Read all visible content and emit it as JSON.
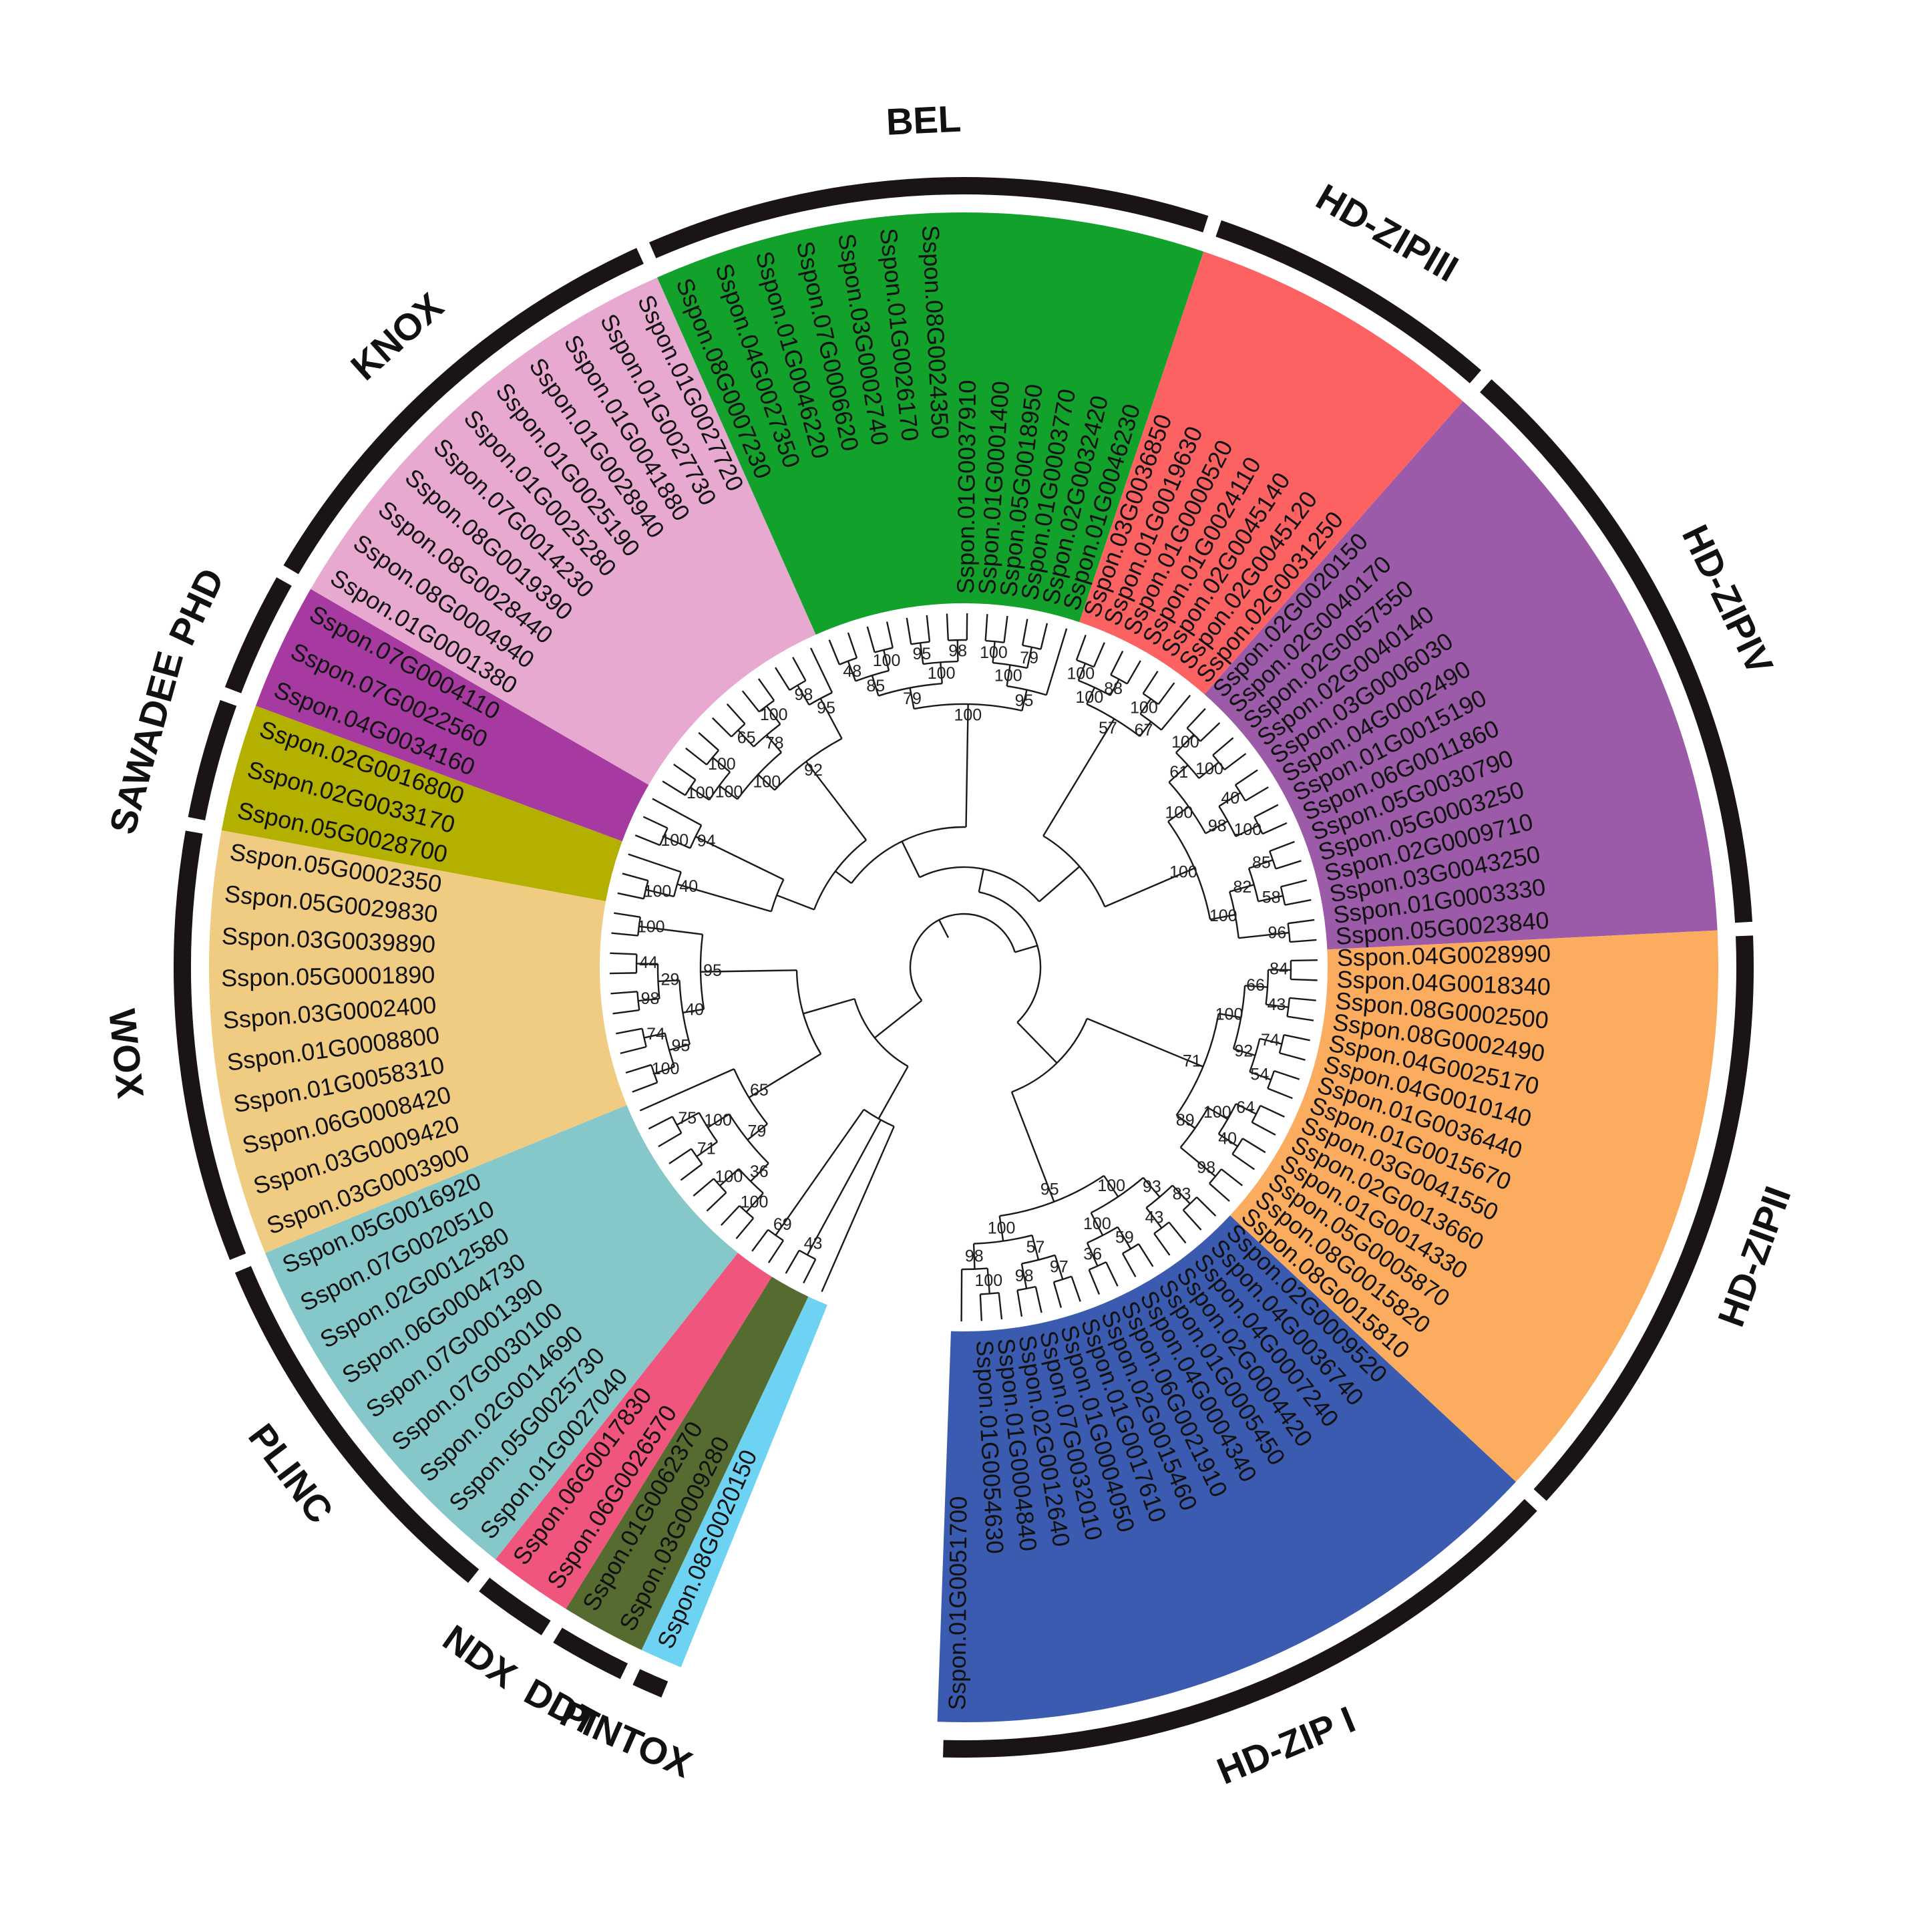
{
  "clades": [
    {
      "name": "PINTOX",
      "color": "#6ed3f2",
      "leaves": [
        "Sspon.08G0020150"
      ]
    },
    {
      "name": "DDT",
      "color": "#556b2f",
      "leaves": [
        "Sspon.03G0009280",
        "Sspon.01G0062370"
      ]
    },
    {
      "name": "NDX",
      "color": "#f0557d",
      "leaves": [
        "Sspon.06G0026570",
        "Sspon.06G0017830"
      ]
    },
    {
      "name": "PLINC",
      "color": "#86c7c9",
      "leaves": [
        "Sspon.01G0027040",
        "Sspon.05G0025730",
        "Sspon.02G0014690",
        "Sspon.07G0030100",
        "Sspon.07G0001390",
        "Sspon.06G0004730",
        "Sspon.02G0012580",
        "Sspon.07G0020510",
        "Sspon.05G0016920"
      ]
    },
    {
      "name": "WOX",
      "color": "#f0cc83",
      "leaves": [
        "Sspon.03G0003900",
        "Sspon.03G0009420",
        "Sspon.06G0008420",
        "Sspon.01G0058310",
        "Sspon.01G0008800",
        "Sspon.03G0002400",
        "Sspon.05G0001890",
        "Sspon.03G0039890",
        "Sspon.05G0029830",
        "Sspon.05G0002350"
      ]
    },
    {
      "name": "SAWADEE",
      "color": "#b3b000",
      "leaves": [
        "Sspon.05G0028700",
        "Sspon.02G0033170",
        "Sspon.02G0016800"
      ]
    },
    {
      "name": "PHD",
      "color": "#a63aa0",
      "leaves": [
        "Sspon.04G0034160",
        "Sspon.07G0022560",
        "Sspon.07G0004110"
      ]
    },
    {
      "name": "KNOX",
      "color": "#e8a9d0",
      "leaves": [
        "Sspon.01G0001380",
        "Sspon.08G0004940",
        "Sspon.08G0028440",
        "Sspon.08G0019390",
        "Sspon.07G0014230",
        "Sspon.01G0025280",
        "Sspon.01G0025190",
        "Sspon.01G0028940",
        "Sspon.01G0041880",
        "Sspon.01G0027730",
        "Sspon.01G0027720"
      ]
    },
    {
      "name": "BEL",
      "color": "#12a12b",
      "leaves": [
        "Sspon.08G0007230",
        "Sspon.04G0027350",
        "Sspon.01G0046220",
        "Sspon.07G0006620",
        "Sspon.03G0002740",
        "Sspon.01G0026170",
        "Sspon.08G0024350",
        "Sspon.01G0037910",
        "Sspon.01G0001400",
        "Sspon.05G0018950",
        "Sspon.01G0003770",
        "Sspon.02G0032420",
        "Sspon.01G0046230"
      ]
    },
    {
      "name": "HD-ZIPIII",
      "color": "#fc6262",
      "leaves": [
        "Sspon.03G0036850",
        "Sspon.01G0019630",
        "Sspon.01G0000520",
        "Sspon.01G0024110",
        "Sspon.02G0045140",
        "Sspon.02G0045120",
        "Sspon.02G0031250"
      ]
    },
    {
      "name": "HD-ZIPIV",
      "color": "#9b5ba8",
      "leaves": [
        "Sspon.02G0020150",
        "Sspon.02G0040170",
        "Sspon.02G0057550",
        "Sspon.02G0040140",
        "Sspon.03G0006030",
        "Sspon.04G0002490",
        "Sspon.01G0015190",
        "Sspon.06G0011860",
        "Sspon.05G0030790",
        "Sspon.05G0003250",
        "Sspon.02G0009710",
        "Sspon.03G0043250",
        "Sspon.01G0003330",
        "Sspon.05G0023840"
      ]
    },
    {
      "name": "HD-ZIPII",
      "color": "#fbac5e",
      "leaves": [
        "Sspon.04G0028990",
        "Sspon.04G0018340",
        "Sspon.08G0002500",
        "Sspon.08G0002490",
        "Sspon.04G0025170",
        "Sspon.04G0010140",
        "Sspon.01G0036440",
        "Sspon.01G0015670",
        "Sspon.03G0041550",
        "Sspon.02G0013660",
        "Sspon.01G0014330",
        "Sspon.05G0005870",
        "Sspon.08G0015820",
        "Sspon.08G0015810"
      ]
    },
    {
      "name": "HD-ZIP I",
      "color": "#3a5bb0",
      "leaves": [
        "Sspon.02G0009520",
        "Sspon.04G0036740",
        "Sspon.04G0007240",
        "Sspon.02G0004420",
        "Sspon.01G0005450",
        "Sspon.04G0004340",
        "Sspon.06G0021910",
        "Sspon.02G0015460",
        "Sspon.01G0017610",
        "Sspon.01G0004050",
        "Sspon.07G0032010",
        "Sspon.02G0012640",
        "Sspon.01G0004840",
        "Sspon.01G0054630",
        "Sspon.01G0051700"
      ]
    }
  ],
  "bootstrap_values": [
    "43",
    "69",
    "100",
    "100",
    "71",
    "75",
    "36",
    "100",
    "79",
    "65",
    "100",
    "74",
    "98",
    "44",
    "100",
    "95",
    "29",
    "40",
    "95",
    "100",
    "40",
    "100",
    "94",
    "100",
    "100",
    "65",
    "100",
    "98",
    "100",
    "78",
    "95",
    "100",
    "92",
    "48",
    "100",
    "95",
    "98",
    "100",
    "79",
    "85",
    "100",
    "100",
    "79",
    "95",
    "100",
    "100",
    "88",
    "100",
    "100",
    "67",
    "57",
    "100",
    "100",
    "40",
    "100",
    "85",
    "58",
    "96",
    "61",
    "98",
    "82",
    "100",
    "100",
    "100",
    "84",
    "43",
    "74",
    "54",
    "64",
    "40",
    "98",
    "66",
    "92",
    "100",
    "100",
    "89",
    "71",
    "83",
    "43",
    "59",
    "36",
    "97",
    "98",
    "100",
    "93",
    "100",
    "57",
    "98",
    "100",
    "100",
    "95"
  ]
}
